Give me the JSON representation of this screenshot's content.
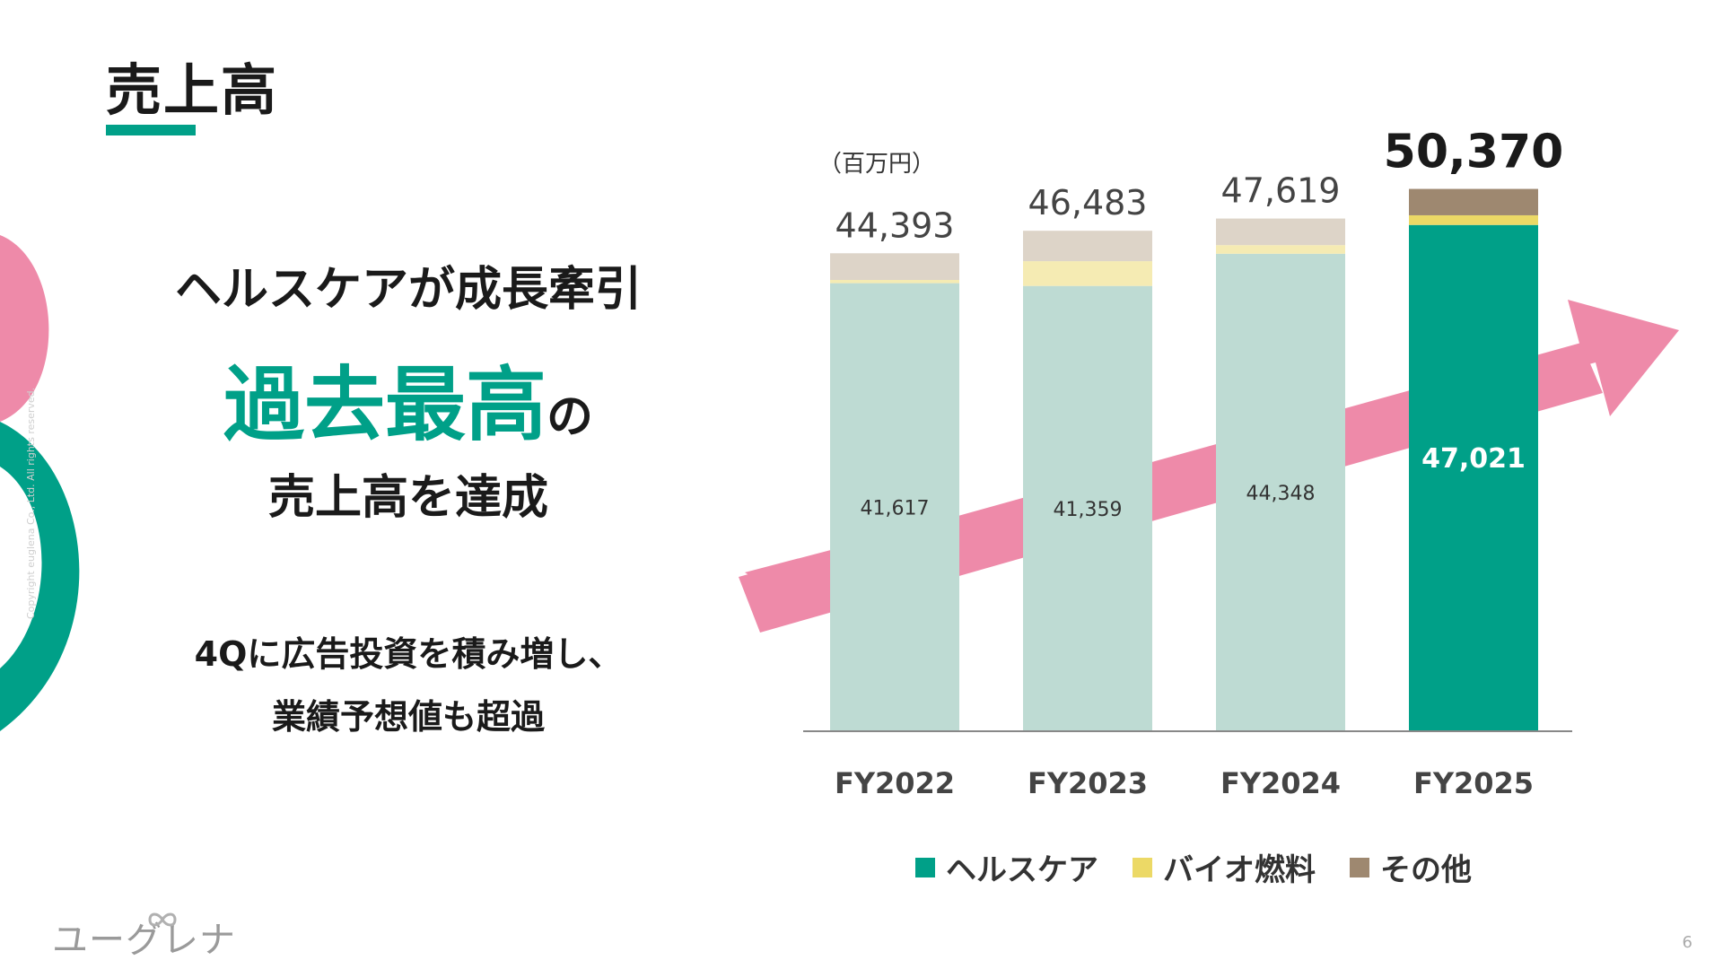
{
  "slide": {
    "title": "売上高",
    "headline1": "ヘルスケアが成長牽引",
    "headline2_big": "過去最高",
    "headline2_small": "の",
    "headline3": "売上高を達成",
    "note_line1": "4Qに広告投資を積み増し、",
    "note_line2": "業績予想値も超過",
    "copyright": "Copyright euglena Co., Ltd. All rights reserved.",
    "logo_text": "ユーグレナ",
    "page_number": "6",
    "colors": {
      "accent": "#00a088",
      "arrow": "#ee8aa9",
      "deco_pink": "#ee8aa9",
      "deco_green": "#00a088"
    }
  },
  "chart_data": {
    "type": "bar",
    "stacked": true,
    "unit_label": "（百万円）",
    "categories": [
      "FY2022",
      "FY2023",
      "FY2024",
      "FY2025"
    ],
    "totals": [
      "44,393",
      "46,483",
      "47,619",
      "50,370"
    ],
    "total_values": [
      44393,
      46483,
      47619,
      50370
    ],
    "series": [
      {
        "name": "ヘルスケア",
        "values": [
          41617,
          41359,
          44348,
          47021
        ],
        "labels": [
          "41,617",
          "41,359",
          "44,348",
          "47,021"
        ],
        "colors": [
          "#bedbd3",
          "#bedbd3",
          "#bedbd3",
          "#00a088"
        ]
      },
      {
        "name": "バイオ燃料",
        "values": [
          300,
          2300,
          800,
          900
        ],
        "colors": [
          "#f5ebb3",
          "#f5ebb3",
          "#f5ebb3",
          "#ecd966"
        ]
      },
      {
        "name": "その他",
        "values": [
          2476,
          2824,
          2471,
          2449
        ],
        "colors": [
          "#ddd4c8",
          "#ddd4c8",
          "#ddd4c8",
          "#9e8870"
        ]
      }
    ],
    "legend": [
      {
        "name": "ヘルスケア",
        "color": "#00a088"
      },
      {
        "name": "バイオ燃料",
        "color": "#ecd966"
      },
      {
        "name": "その他",
        "color": "#9e8870"
      }
    ],
    "legend_position": "bottom",
    "grid": false
  }
}
